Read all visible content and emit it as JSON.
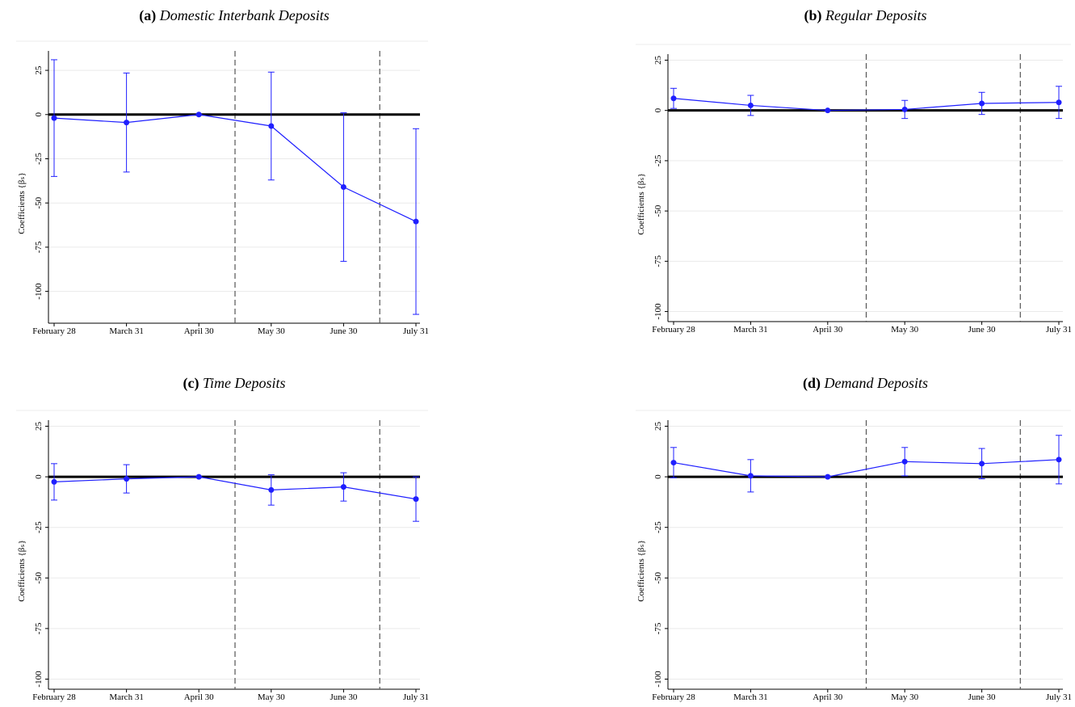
{
  "chart_data": [
    {
      "type": "line",
      "label": "(a)",
      "title": "Domestic Interbank Deposits",
      "ylabel": "Coefficients {βₛ}",
      "categories": [
        "February 28",
        "March 31",
        "April 30",
        "May 30",
        "June 30",
        "July 31"
      ],
      "series": [
        {
          "color": "#1f1fff",
          "values": [
            -2,
            -4.5,
            0,
            -6.5,
            -41,
            -60.5
          ],
          "errors": [
            33,
            28,
            0,
            30.5,
            42,
            52.5
          ]
        }
      ],
      "ylim": [
        -118,
        36
      ],
      "yticks": [
        25,
        0,
        -25,
        -50,
        -75,
        -100
      ],
      "grid": true,
      "hline": 0
    },
    {
      "type": "line",
      "label": "(b)",
      "title": "Regular Deposits",
      "ylabel": "Coefficients {βₛ}",
      "categories": [
        "February 28",
        "March 31",
        "April 30",
        "May 30",
        "June 30",
        "July 31"
      ],
      "series": [
        {
          "color": "#1f1fff",
          "values": [
            6,
            2.5,
            0,
            0.5,
            3.5,
            4
          ],
          "errors": [
            5,
            5,
            0,
            4.5,
            5.5,
            8
          ]
        }
      ],
      "ylim": [
        -105,
        28
      ],
      "yticks": [
        25,
        0,
        -25,
        -50,
        -75,
        -100
      ],
      "grid": true,
      "hline": 0
    },
    {
      "type": "line",
      "label": "(c)",
      "title": "Time Deposits",
      "ylabel": "Coefficients {βₛ}",
      "categories": [
        "February 28",
        "March 31",
        "April 30",
        "May 30",
        "June 30",
        "July 31"
      ],
      "series": [
        {
          "color": "#1f1fff",
          "values": [
            -2.5,
            -1,
            0,
            -6.5,
            -5,
            -11
          ],
          "errors": [
            9,
            7,
            0,
            7.5,
            7,
            11
          ]
        }
      ],
      "ylim": [
        -105,
        28
      ],
      "yticks": [
        25,
        0,
        -25,
        -50,
        -75,
        -100
      ],
      "grid": true,
      "hline": 0
    },
    {
      "type": "line",
      "label": "(d)",
      "title": "Demand Deposits",
      "ylabel": "Coefficients {βₛ}",
      "categories": [
        "February 28",
        "March 31",
        "April 30",
        "May 30",
        "June 30",
        "July 31"
      ],
      "series": [
        {
          "color": "#1f1fff",
          "values": [
            7,
            0.5,
            0,
            7.5,
            6.5,
            8.5
          ],
          "errors": [
            7.5,
            8,
            0,
            7,
            7.5,
            12
          ]
        }
      ],
      "ylim": [
        -105,
        28
      ],
      "yticks": [
        25,
        0,
        -25,
        -50,
        -75,
        -100
      ],
      "grid": true,
      "hline": 0
    }
  ]
}
